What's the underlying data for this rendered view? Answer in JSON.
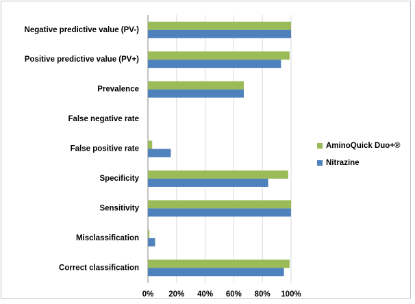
{
  "chart_data": {
    "type": "bar",
    "orientation": "horizontal",
    "categories": [
      "Negative predictive value (PV-)",
      "Positive predictive value (PV+)",
      "Prevalence",
      "False negative rate",
      "False positive rate",
      "Specificity",
      "Sensitivity",
      "Misclassification",
      "Correct classification"
    ],
    "series": [
      {
        "name": "AminoQuick Duo+®",
        "color": "#9bbb59",
        "values": [
          100,
          99,
          67,
          0,
          3,
          98,
          100,
          1,
          99
        ]
      },
      {
        "name": "Nitrazine",
        "color": "#4f81bd",
        "values": [
          100,
          93,
          67,
          0,
          16,
          84,
          100,
          5,
          95
        ]
      }
    ],
    "xlim": [
      0,
      100
    ],
    "xticks": [
      {
        "value": 0,
        "label": "0%"
      },
      {
        "value": 20,
        "label": "20%"
      },
      {
        "value": 40,
        "label": "40%"
      },
      {
        "value": 60,
        "label": "60%"
      },
      {
        "value": 80,
        "label": "80%"
      },
      {
        "value": 100,
        "label": "100%"
      }
    ],
    "grid": true,
    "legend": "right"
  }
}
